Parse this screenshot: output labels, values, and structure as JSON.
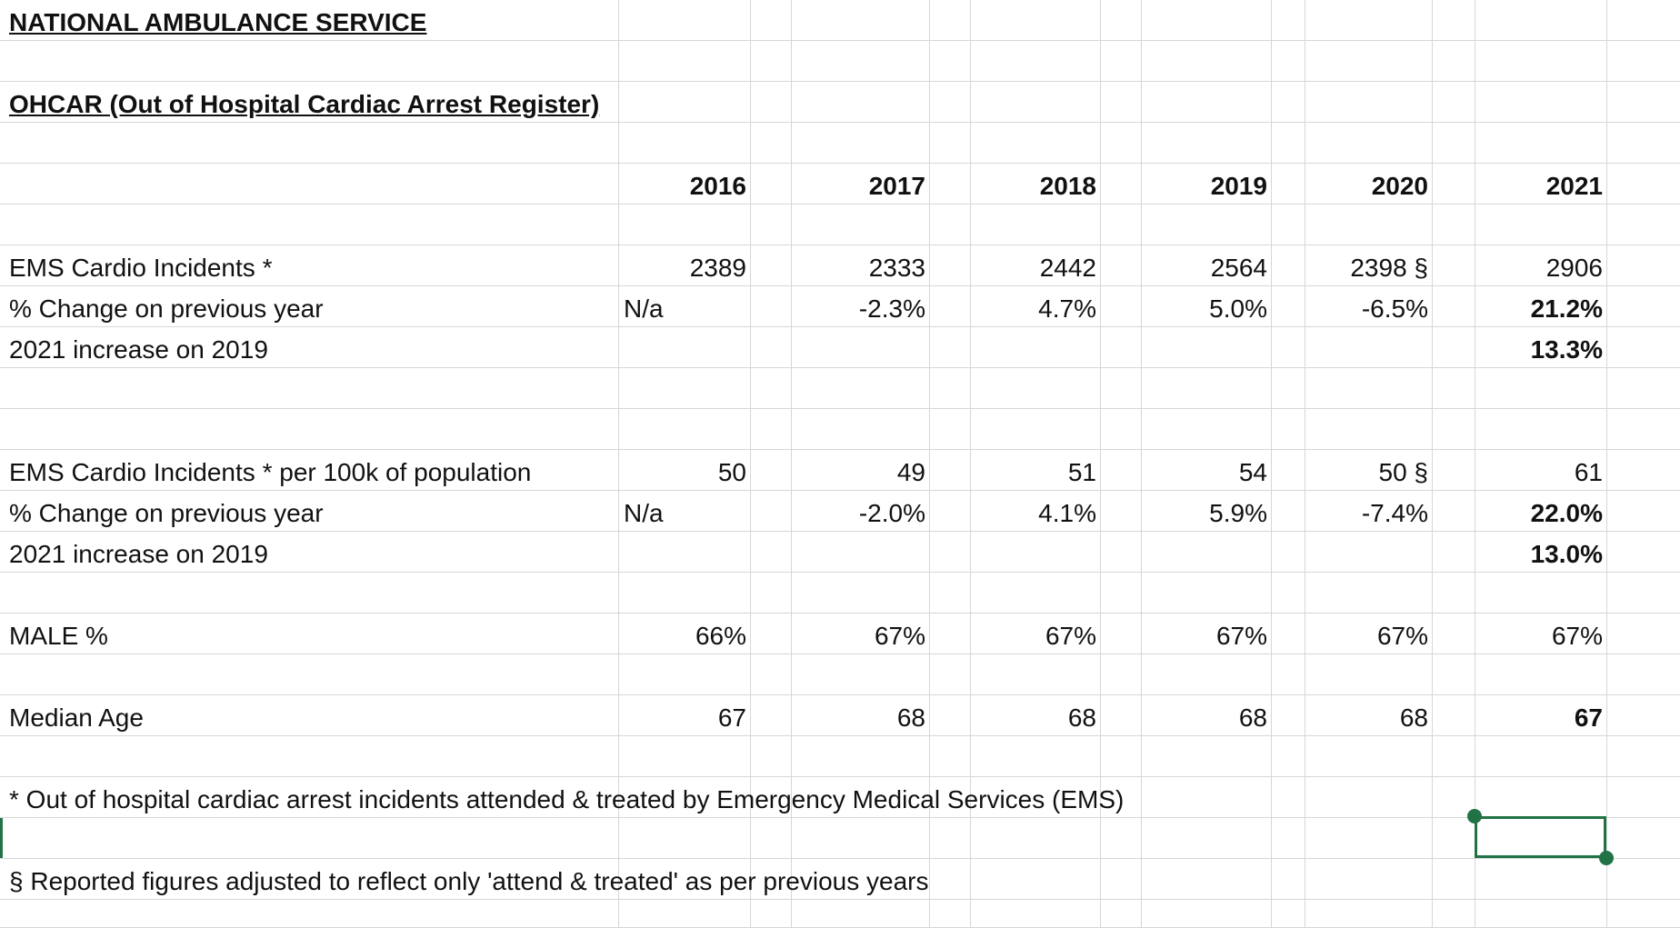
{
  "app": {
    "title": "NATIONAL AMBULANCE SERVICE",
    "subtitle": "OHCAR (Out of Hospital Cardiac Arrest Register)"
  },
  "years": [
    "2016",
    "2017",
    "2018",
    "2019",
    "2020",
    "2021"
  ],
  "rows": {
    "incidents": {
      "label": "EMS Cardio Incidents *",
      "values": [
        "2389",
        "2333",
        "2442",
        "2564",
        "2398 §",
        "2906"
      ]
    },
    "incidents_change": {
      "label": "% Change on previous year",
      "values": [
        "N/a",
        "-2.3%",
        "4.7%",
        "5.0%",
        "-6.5%",
        "21.2%"
      ]
    },
    "incidents_vs2019": {
      "label": "2021 increase on 2019",
      "value_2021": "13.3%"
    },
    "per100k": {
      "label": "EMS Cardio Incidents * per 100k of population",
      "values": [
        "50",
        "49",
        "51",
        "54",
        "50 §",
        "61"
      ]
    },
    "per100k_change": {
      "label": "% Change on previous year",
      "values": [
        "N/a",
        "-2.0%",
        "4.1%",
        "5.9%",
        "-7.4%",
        "22.0%"
      ]
    },
    "per100k_vs2019": {
      "label": "2021 increase on 2019",
      "value_2021": "13.0%"
    },
    "male": {
      "label": "MALE %",
      "values": [
        "66%",
        "67%",
        "67%",
        "67%",
        "67%",
        "67%"
      ]
    },
    "median_age": {
      "label": "Median Age",
      "values": [
        "67",
        "68",
        "68",
        "68",
        "68",
        "67"
      ]
    }
  },
  "footnotes": {
    "asterisk": "* Out of hospital cardiac arrest incidents attended & treated by Emergency Medical Services (EMS)",
    "section": "§ Reported figures adjusted to reflect only 'attend & treated' as per previous years"
  },
  "selection": {
    "color": "#217346"
  }
}
